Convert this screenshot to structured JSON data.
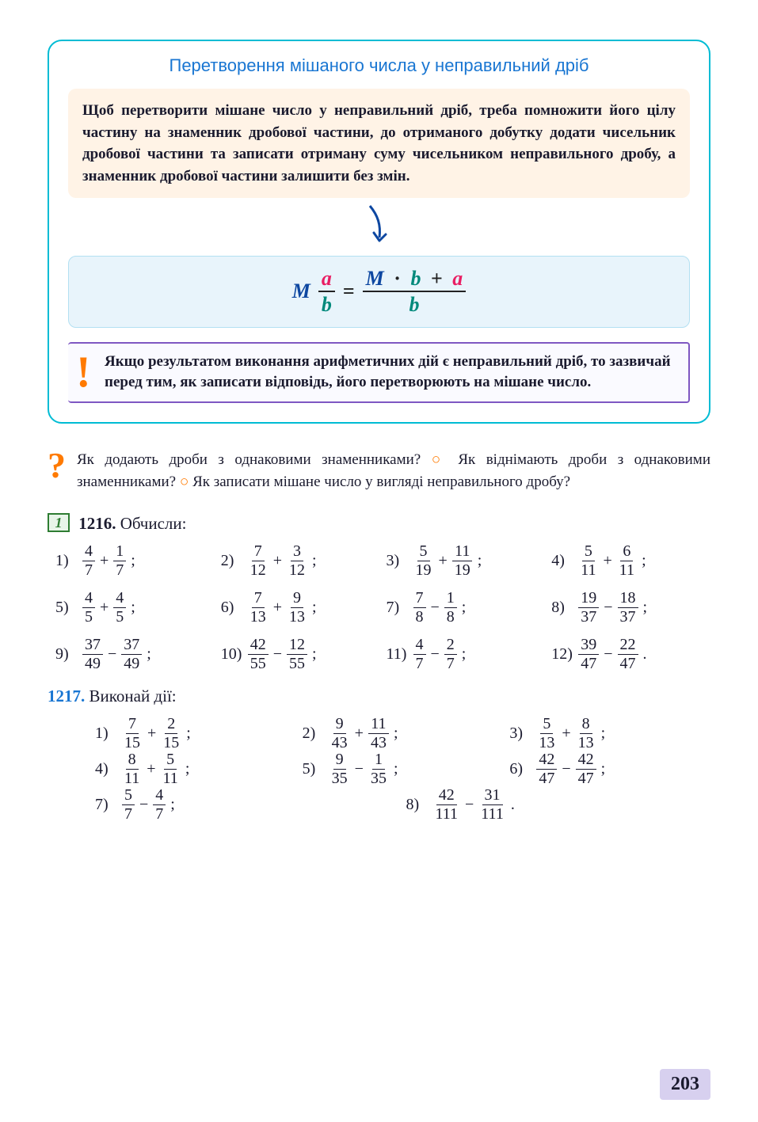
{
  "colors": {
    "box_border": "#00bcd4",
    "title": "#1976d2",
    "rule_bg": "#fff3e6",
    "formula_bg": "#e8f4fb",
    "note_border": "#7e57c2",
    "accent_orange": "#ff7a00",
    "num_blue": "#1976d2",
    "badge_green": "#2e7d32",
    "page_bg": "#d7d0ef",
    "M_color": "#0d47a1",
    "a_color": "#e91e63",
    "b_color": "#00897b"
  },
  "box": {
    "title": "Перетворення мішаного числа у неправильний дріб",
    "rule": "Щоб перетворити мішане число у неправильний дріб, треба помножити його цілу частину на знаменник дробової частини, до отриманого добутку додати чисельник дробової частини та записати отриману суму чисельником неправильного дробу, а знаменник дробової частини залишити без змін.",
    "formula": {
      "M": "M",
      "a": "a",
      "b": "b",
      "eq": "=",
      "dot": "·",
      "plus": "+"
    },
    "note": "Якщо результатом виконання арифметичних дій є неправильний дріб, то зазвичай перед тим, як записати відповідь, його перетворюють на мішане число."
  },
  "question": {
    "q1": "Як додають дроби з однаковими знаменниками?",
    "q2": "Як віднімають дроби з однаковими знаменниками?",
    "q3": "Як записати мішане число у вигляді неправильного дробу?"
  },
  "level_badge": "1",
  "ex1216": {
    "num": "1216.",
    "title": "Обчисли:",
    "items": [
      {
        "i": "1)",
        "a": {
          "n": "4",
          "d": "7"
        },
        "op": "+",
        "b": {
          "n": "1",
          "d": "7"
        },
        "end": ";"
      },
      {
        "i": "2)",
        "a": {
          "n": "7",
          "d": "12"
        },
        "op": "+",
        "b": {
          "n": "3",
          "d": "12"
        },
        "end": ";"
      },
      {
        "i": "3)",
        "a": {
          "n": "5",
          "d": "19"
        },
        "op": "+",
        "b": {
          "n": "11",
          "d": "19"
        },
        "end": ";"
      },
      {
        "i": "4)",
        "a": {
          "n": "5",
          "d": "11"
        },
        "op": "+",
        "b": {
          "n": "6",
          "d": "11"
        },
        "end": ";"
      },
      {
        "i": "5)",
        "a": {
          "n": "4",
          "d": "5"
        },
        "op": "+",
        "b": {
          "n": "4",
          "d": "5"
        },
        "end": ";"
      },
      {
        "i": "6)",
        "a": {
          "n": "7",
          "d": "13"
        },
        "op": "+",
        "b": {
          "n": "9",
          "d": "13"
        },
        "end": ";"
      },
      {
        "i": "7)",
        "a": {
          "n": "7",
          "d": "8"
        },
        "op": "−",
        "b": {
          "n": "1",
          "d": "8"
        },
        "end": ";"
      },
      {
        "i": "8)",
        "a": {
          "n": "19",
          "d": "37"
        },
        "op": "−",
        "b": {
          "n": "18",
          "d": "37"
        },
        "end": ";"
      },
      {
        "i": "9)",
        "a": {
          "n": "37",
          "d": "49"
        },
        "op": "−",
        "b": {
          "n": "37",
          "d": "49"
        },
        "end": ";"
      },
      {
        "i": "10)",
        "a": {
          "n": "42",
          "d": "55"
        },
        "op": "−",
        "b": {
          "n": "12",
          "d": "55"
        },
        "end": ";"
      },
      {
        "i": "11)",
        "a": {
          "n": "4",
          "d": "7"
        },
        "op": "−",
        "b": {
          "n": "2",
          "d": "7"
        },
        "end": ";"
      },
      {
        "i": "12)",
        "a": {
          "n": "39",
          "d": "47"
        },
        "op": "−",
        "b": {
          "n": "22",
          "d": "47"
        },
        "end": "."
      }
    ]
  },
  "ex1217": {
    "num": "1217.",
    "title": "Виконай дії:",
    "rows": [
      [
        {
          "i": "1)",
          "a": {
            "n": "7",
            "d": "15"
          },
          "op": "+",
          "b": {
            "n": "2",
            "d": "15"
          },
          "end": ";"
        },
        {
          "i": "2)",
          "a": {
            "n": "9",
            "d": "43"
          },
          "op": "+",
          "b": {
            "n": "11",
            "d": "43"
          },
          "end": ";"
        },
        {
          "i": "3)",
          "a": {
            "n": "5",
            "d": "13"
          },
          "op": "+",
          "b": {
            "n": "8",
            "d": "13"
          },
          "end": ";"
        }
      ],
      [
        {
          "i": "4)",
          "a": {
            "n": "8",
            "d": "11"
          },
          "op": "+",
          "b": {
            "n": "5",
            "d": "11"
          },
          "end": ";"
        },
        {
          "i": "5)",
          "a": {
            "n": "9",
            "d": "35"
          },
          "op": "−",
          "b": {
            "n": "1",
            "d": "35"
          },
          "end": ";"
        },
        {
          "i": "6)",
          "a": {
            "n": "42",
            "d": "47"
          },
          "op": "−",
          "b": {
            "n": "42",
            "d": "47"
          },
          "end": ";"
        }
      ],
      [
        {
          "i": "7)",
          "a": {
            "n": "5",
            "d": "7"
          },
          "op": "−",
          "b": {
            "n": "4",
            "d": "7"
          },
          "end": ";"
        },
        {
          "i": "8)",
          "a": {
            "n": "42",
            "d": "111"
          },
          "op": "−",
          "b": {
            "n": "31",
            "d": "111"
          },
          "end": "."
        }
      ]
    ]
  },
  "page_number": "203"
}
